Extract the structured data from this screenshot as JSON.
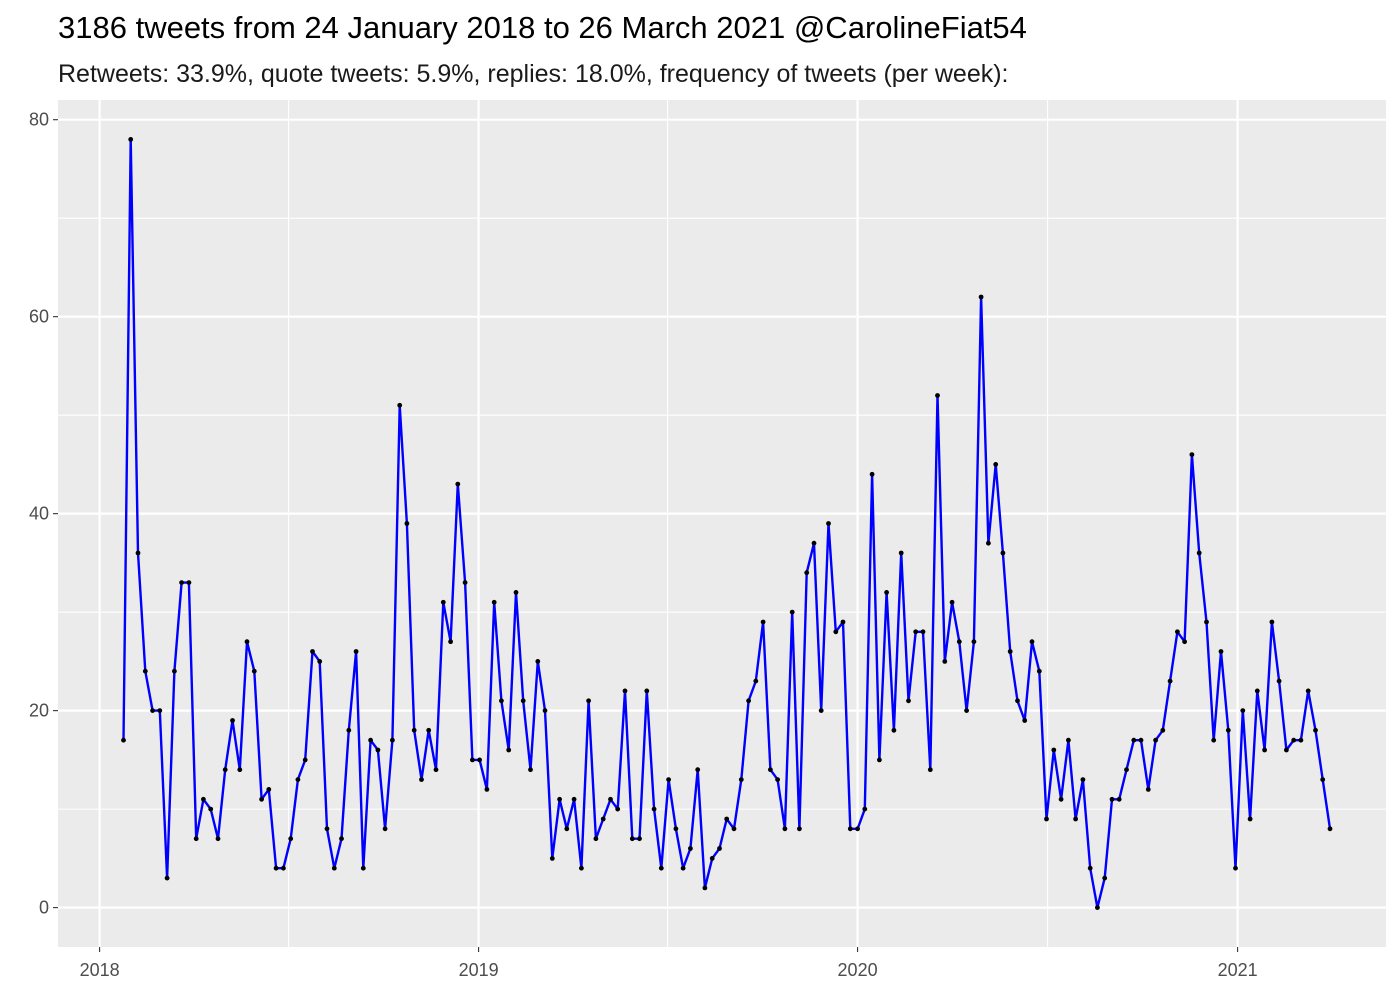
{
  "chart_data": {
    "type": "line",
    "title": "3186 tweets from 24 January 2018 to 26 March 2021 @CarolineFiat54",
    "subtitle": "Retweets: 33.9%, quote tweets: 5.9%, replies: 18.0%, frequency of tweets (per week):",
    "xlabel": "",
    "ylabel": "",
    "x_start": "2018-01-24",
    "x_interval": "1 week",
    "ylim": [
      -4,
      82
    ],
    "y_ticks": [
      0,
      20,
      40,
      60,
      80
    ],
    "x_ticks": [
      "2018",
      "2019",
      "2020",
      "2021"
    ],
    "grid": true,
    "line_color": "#0000ff",
    "point_color": "#000000",
    "panel_background": "#ebebeb",
    "series": [
      {
        "values": [
          17,
          78,
          36,
          24,
          20,
          20,
          3,
          24,
          33,
          33,
          7,
          11,
          10,
          7,
          14,
          19,
          14,
          27,
          24,
          11,
          12,
          4,
          4,
          7,
          13,
          15,
          26,
          25,
          8,
          4,
          7,
          18,
          26,
          4,
          17,
          16,
          8,
          17,
          51,
          39,
          18,
          13,
          18,
          14,
          31,
          27,
          43,
          33,
          15,
          15,
          12,
          31,
          21,
          16,
          32,
          21,
          14,
          25,
          20,
          5,
          11,
          8,
          11,
          4,
          21,
          7,
          9,
          11,
          10,
          22,
          7,
          7,
          22,
          10,
          4,
          13,
          8,
          4,
          6,
          14,
          2,
          5,
          6,
          9,
          8,
          13,
          21,
          23,
          29,
          14,
          13,
          8,
          30,
          8,
          34,
          37,
          20,
          39,
          28,
          29,
          8,
          8,
          10,
          44,
          15,
          32,
          18,
          36,
          21,
          28,
          28,
          14,
          52,
          25,
          31,
          27,
          20,
          27,
          62,
          37,
          45,
          36,
          26,
          21,
          19,
          27,
          24,
          9,
          16,
          11,
          17,
          9,
          13,
          4,
          0,
          3,
          11,
          11,
          14,
          17,
          17,
          12,
          17,
          18,
          23,
          28,
          27,
          46,
          36,
          29,
          17,
          26,
          18,
          4,
          20,
          9,
          22,
          16,
          29,
          23,
          16,
          17,
          17,
          22,
          18,
          13,
          8
        ]
      }
    ]
  }
}
